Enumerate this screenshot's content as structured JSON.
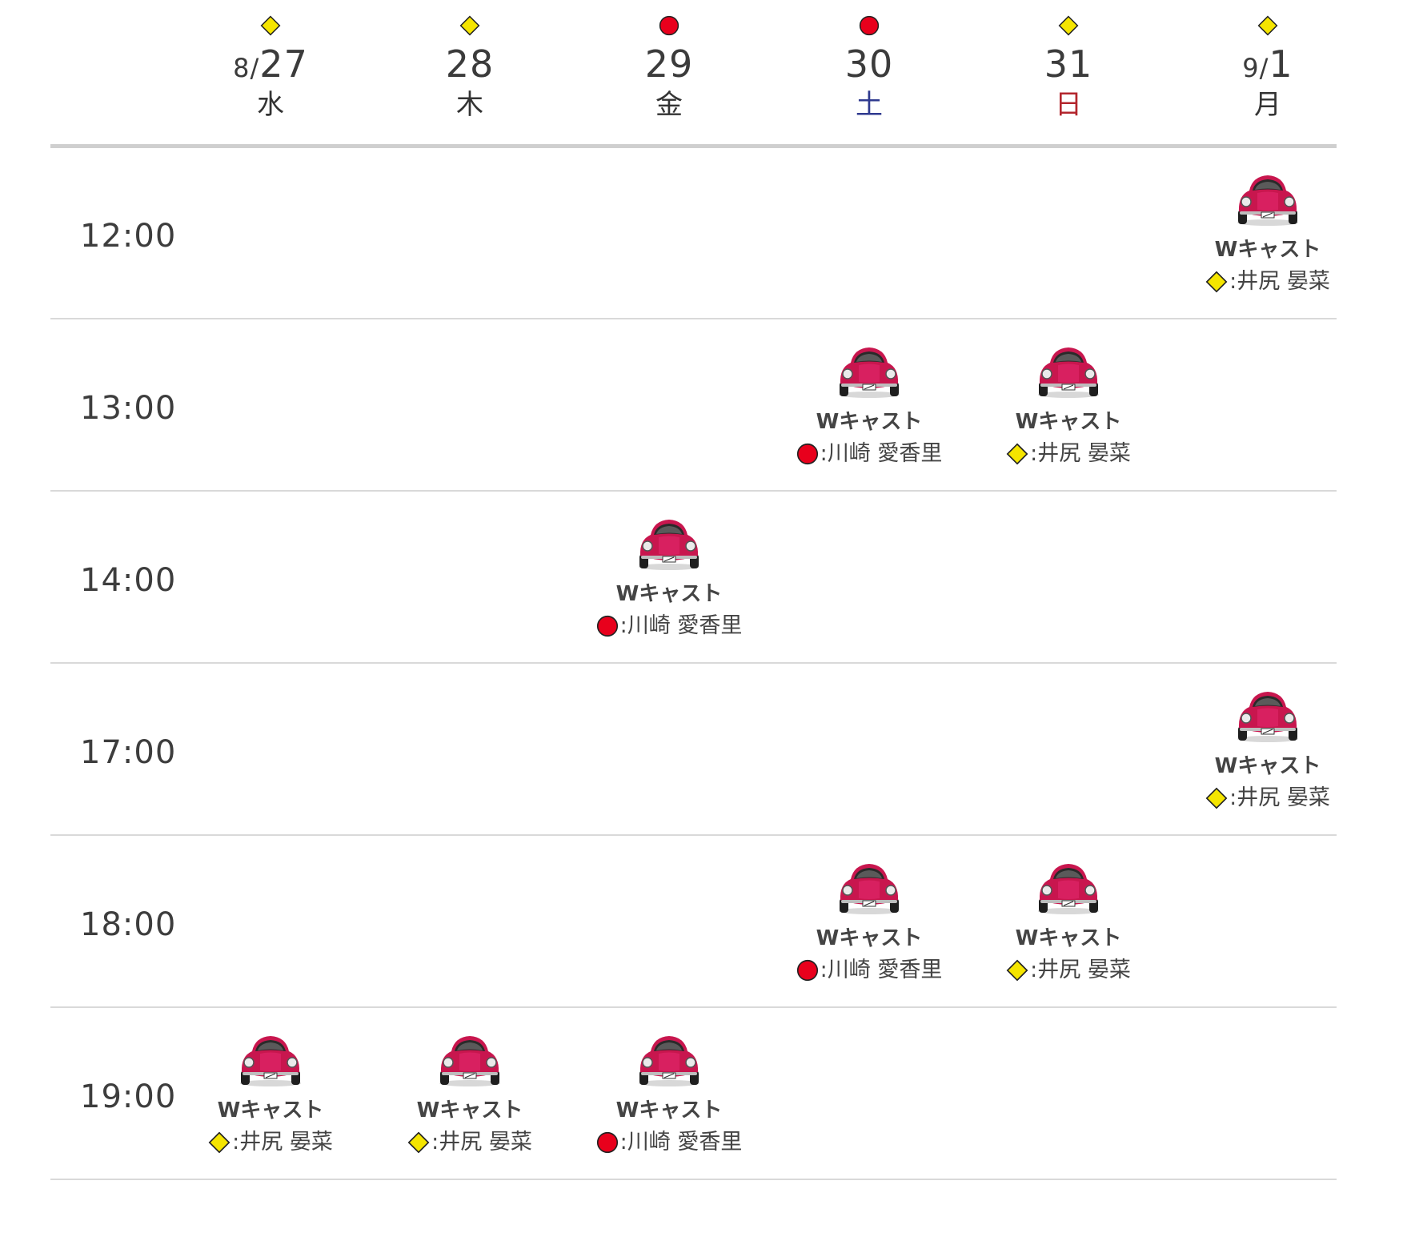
{
  "colors": {
    "circle_mark": "#e8001c",
    "diamond_mark": "#f5e500",
    "saturday": "#2f3a8f",
    "sunday": "#b3262d",
    "car_body": "#c8164e"
  },
  "days": [
    {
      "month": "8/",
      "day": "27",
      "weekday": "水",
      "mark": "diamond",
      "weekday_type": "weekday"
    },
    {
      "month": "",
      "day": "28",
      "weekday": "木",
      "mark": "diamond",
      "weekday_type": "weekday"
    },
    {
      "month": "",
      "day": "29",
      "weekday": "金",
      "mark": "circle",
      "weekday_type": "weekday"
    },
    {
      "month": "",
      "day": "30",
      "weekday": "土",
      "mark": "circle",
      "weekday_type": "saturday"
    },
    {
      "month": "",
      "day": "31",
      "weekday": "日",
      "mark": "diamond",
      "weekday_type": "sunday"
    },
    {
      "month": "9/",
      "day": "1",
      "weekday": "月",
      "mark": "diamond",
      "weekday_type": "weekday"
    }
  ],
  "rows": [
    {
      "time": "12:00",
      "performances": [
        {
          "day_index": 5,
          "icon": "red-beetle-car-icon",
          "cast_type": "Wキャスト",
          "mark": "diamond",
          "cast_text": ":井尻 晏菜"
        }
      ]
    },
    {
      "time": "13:00",
      "performances": [
        {
          "day_index": 3,
          "icon": "red-beetle-car-icon",
          "cast_type": "Wキャスト",
          "mark": "circle",
          "cast_text": ":川崎 愛香里"
        },
        {
          "day_index": 4,
          "icon": "red-beetle-car-icon",
          "cast_type": "Wキャスト",
          "mark": "diamond",
          "cast_text": ":井尻 晏菜"
        }
      ]
    },
    {
      "time": "14:00",
      "performances": [
        {
          "day_index": 2,
          "icon": "red-beetle-car-icon",
          "cast_type": "Wキャスト",
          "mark": "circle",
          "cast_text": ":川崎 愛香里"
        }
      ]
    },
    {
      "time": "17:00",
      "performances": [
        {
          "day_index": 5,
          "icon": "red-beetle-car-icon",
          "cast_type": "Wキャスト",
          "mark": "diamond",
          "cast_text": ":井尻 晏菜"
        }
      ]
    },
    {
      "time": "18:00",
      "performances": [
        {
          "day_index": 3,
          "icon": "red-beetle-car-icon",
          "cast_type": "Wキャスト",
          "mark": "circle",
          "cast_text": ":川崎 愛香里"
        },
        {
          "day_index": 4,
          "icon": "red-beetle-car-icon",
          "cast_type": "Wキャスト",
          "mark": "diamond",
          "cast_text": ":井尻 晏菜"
        }
      ]
    },
    {
      "time": "19:00",
      "performances": [
        {
          "day_index": 0,
          "icon": "red-beetle-car-icon",
          "cast_type": "Wキャスト",
          "mark": "diamond",
          "cast_text": ":井尻 晏菜"
        },
        {
          "day_index": 1,
          "icon": "red-beetle-car-icon",
          "cast_type": "Wキャスト",
          "mark": "diamond",
          "cast_text": ":井尻 晏菜"
        },
        {
          "day_index": 2,
          "icon": "red-beetle-car-icon",
          "cast_type": "Wキャスト",
          "mark": "circle",
          "cast_text": ":川崎 愛香里"
        }
      ]
    }
  ]
}
